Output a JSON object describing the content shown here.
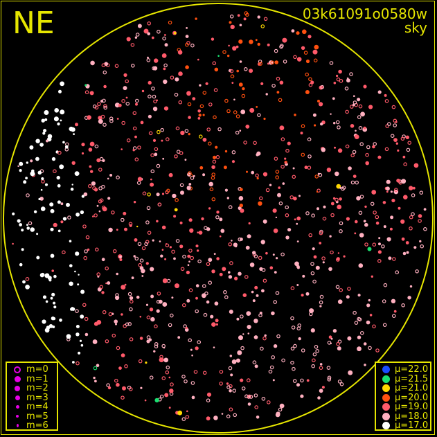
{
  "direction_label": "NE",
  "title": {
    "frame_id": "03k61091o0580w",
    "type": "sky"
  },
  "colors": {
    "frame": "#e6e600",
    "background": "#000000",
    "magnitude_symbol": "#e600e6"
  },
  "magnitude_legend": [
    {
      "label": "m=0",
      "style": "ring"
    },
    {
      "label": "m=1"
    },
    {
      "label": "m=2"
    },
    {
      "label": "m=3"
    },
    {
      "label": "m=4"
    },
    {
      "label": "m=5"
    },
    {
      "label": "m=6"
    }
  ],
  "surface_brightness_legend": [
    {
      "label": "μ=22.0",
      "color": "#1a4cff"
    },
    {
      "label": "μ=21.5",
      "color": "#19e070"
    },
    {
      "label": "μ=21.0",
      "color": "#ffd800"
    },
    {
      "label": "μ=20.0",
      "color": "#ff5010"
    },
    {
      "label": "μ=19.0",
      "color": "#ff5a6a"
    },
    {
      "label": "μ=18.0",
      "color": "#ffb0c0"
    },
    {
      "label": "μ=17.0",
      "color": "#ffffff"
    }
  ]
}
